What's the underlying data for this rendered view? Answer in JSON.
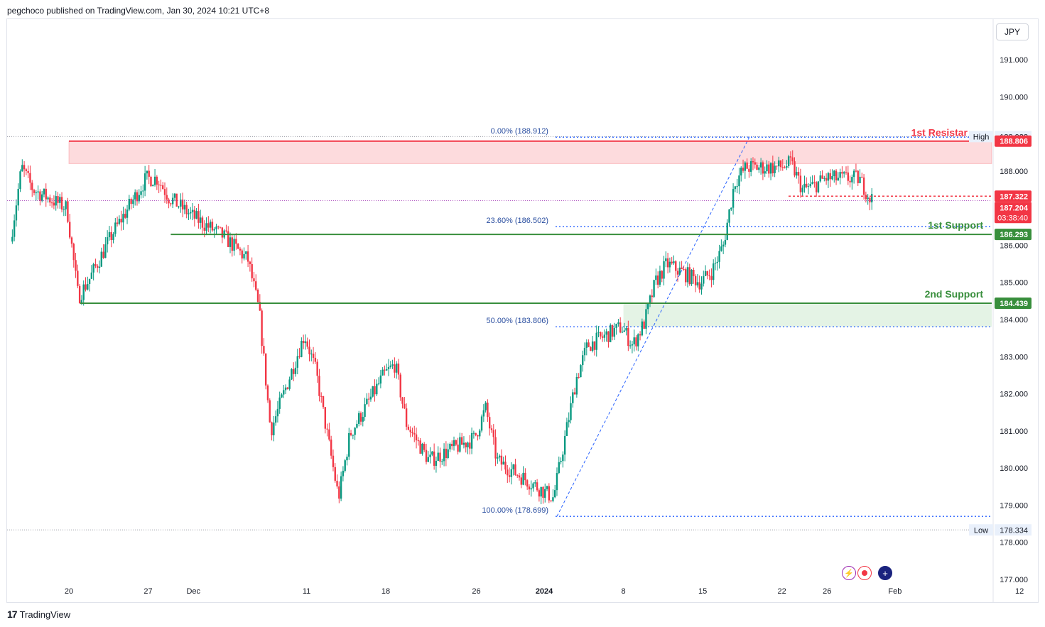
{
  "header": {
    "publisher_line": "pegchoco published on TradingView.com, Jan 30, 2024 10:21 UTC+8"
  },
  "currency_label": "JPY",
  "footer": {
    "logo_mark": "17",
    "logo_text": "TradingView"
  },
  "bottom_icons": [
    "lightning-icon",
    "record-icon",
    "uk-flag-icon"
  ],
  "colors": {
    "up": "#089981",
    "down": "#f23645",
    "resistance": "#f23645",
    "support": "#388e3c",
    "fib": "#2962ff"
  },
  "chart_data": {
    "type": "candlestick",
    "y_ticks": [
      "177.000",
      "178.000",
      "179.000",
      "180.000",
      "181.000",
      "182.000",
      "183.000",
      "184.000",
      "185.000",
      "186.000",
      "187.000",
      "188.000",
      "189.000",
      "190.000",
      "191.000"
    ],
    "ylim": [
      176.9,
      191.65
    ],
    "x_ticks": [
      {
        "label": "20",
        "date": "2023-11-20",
        "bold": false
      },
      {
        "label": "27",
        "date": "2023-11-27",
        "bold": false
      },
      {
        "label": "Dec",
        "date": "2023-12-01",
        "bold": false
      },
      {
        "label": "11",
        "date": "2023-12-11",
        "bold": false
      },
      {
        "label": "18",
        "date": "2023-12-18",
        "bold": false
      },
      {
        "label": "26",
        "date": "2023-12-26",
        "bold": false
      },
      {
        "label": "2024",
        "date": "2024-01-01",
        "bold": true
      },
      {
        "label": "8",
        "date": "2024-01-08",
        "bold": false
      },
      {
        "label": "15",
        "date": "2024-01-15",
        "bold": false
      },
      {
        "label": "22",
        "date": "2024-01-22",
        "bold": false
      },
      {
        "label": "26",
        "date": "2024-01-26",
        "bold": false
      },
      {
        "label": "Feb",
        "date": "2024-02-01",
        "bold": false
      },
      {
        "label": "12",
        "date": "2024-02-12",
        "bold": false
      }
    ],
    "price_path": [
      [
        "2023-11-15",
        186.1
      ],
      [
        "2023-11-16",
        188.1
      ],
      [
        "2023-11-17",
        187.5
      ],
      [
        "2023-11-20",
        187.0
      ],
      [
        "2023-11-21",
        184.6
      ],
      [
        "2023-11-22",
        185.1
      ],
      [
        "2023-11-24",
        186.3
      ],
      [
        "2023-11-27",
        187.8
      ],
      [
        "2023-11-28",
        187.8
      ],
      [
        "2023-11-29",
        187.3
      ],
      [
        "2023-12-01",
        186.8
      ],
      [
        "2023-12-04",
        186.2
      ],
      [
        "2023-12-06",
        185.6
      ],
      [
        "2023-12-07",
        184.2
      ],
      [
        "2023-12-08",
        181.0
      ],
      [
        "2023-12-11",
        183.6
      ],
      [
        "2023-12-12",
        182.6
      ],
      [
        "2023-12-14",
        179.2
      ],
      [
        "2023-12-15",
        180.9
      ],
      [
        "2023-12-18",
        182.5
      ],
      [
        "2023-12-19",
        182.8
      ],
      [
        "2023-12-20",
        181.2
      ],
      [
        "2023-12-21",
        180.7
      ],
      [
        "2023-12-22",
        180.2
      ],
      [
        "2023-12-26",
        180.8
      ],
      [
        "2023-12-27",
        181.6
      ],
      [
        "2023-12-28",
        180.2
      ],
      [
        "2023-12-29",
        180.0
      ],
      [
        "2024-01-02",
        179.2
      ],
      [
        "2024-01-03",
        180.8
      ],
      [
        "2024-01-04",
        182.4
      ],
      [
        "2024-01-05",
        183.3
      ],
      [
        "2024-01-08",
        183.8
      ],
      [
        "2024-01-09",
        183.3
      ],
      [
        "2024-01-10",
        183.9
      ],
      [
        "2024-01-11",
        185.0
      ],
      [
        "2024-01-12",
        185.5
      ],
      [
        "2024-01-15",
        185.0
      ],
      [
        "2024-01-16",
        185.3
      ],
      [
        "2024-01-17",
        186.0
      ],
      [
        "2024-01-18",
        187.7
      ],
      [
        "2024-01-19",
        188.1
      ],
      [
        "2024-01-22",
        188.1
      ],
      [
        "2024-01-23",
        188.2
      ],
      [
        "2024-01-24",
        187.5
      ],
      [
        "2024-01-25",
        187.6
      ],
      [
        "2024-01-26",
        187.8
      ],
      [
        "2024-01-29",
        187.8
      ],
      [
        "2024-01-30",
        187.25
      ]
    ],
    "candles_per_day": 8,
    "current_price": {
      "label": "187.204",
      "countdown": "03:38:40"
    },
    "levels": [
      {
        "name": "1st Resistance",
        "short": "1st Resistar",
        "price": 188.806,
        "label": "188.806",
        "color": "#f23645",
        "zone_top": 188.806,
        "zone_bottom": 188.2,
        "start_date": "2023-11-20"
      },
      {
        "name": "1st Support",
        "short": "1st Support",
        "price": 186.293,
        "label": "186.293",
        "color": "#388e3c",
        "start_date": "2023-11-29"
      },
      {
        "name": "2nd Support",
        "short": "2nd Support",
        "price": 184.439,
        "label": "184.439",
        "color": "#388e3c",
        "zone_top": 184.439,
        "zone_bottom": 183.806,
        "start_date": "2023-11-21",
        "zone_start_date": "2024-01-08"
      }
    ],
    "price_tags": [
      {
        "value": 187.322,
        "label": "187.322",
        "color": "#f23645"
      }
    ],
    "high": {
      "label": "High",
      "value": 188.928,
      "value_label": "188.928"
    },
    "low": {
      "label": "Low",
      "value": 178.334,
      "value_label": "178.334"
    },
    "fib": {
      "start_date": "2024-01-02",
      "end_date": "2024-01-19",
      "levels": [
        {
          "pct": "0.00%",
          "value": 188.912,
          "label": "0.00% (188.912)"
        },
        {
          "pct": "23.60%",
          "value": 186.502,
          "label": "23.60% (186.502)"
        },
        {
          "pct": "50.00%",
          "value": 183.806,
          "label": "50.00% (183.806)"
        },
        {
          "pct": "100.00%",
          "value": 178.699,
          "label": "100.00% (178.699)"
        }
      ]
    }
  }
}
